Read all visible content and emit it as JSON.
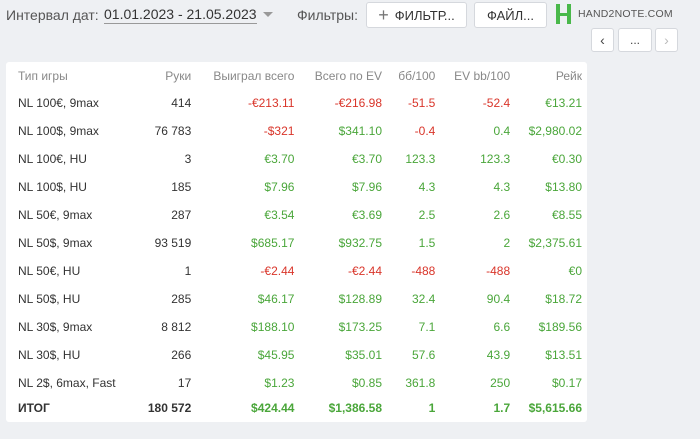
{
  "toolbar": {
    "interval_label": "Интервал дат:",
    "interval_value": "01.01.2023 - 21.05.2023",
    "filters_label": "Фильтры:",
    "filter_button": "ФИЛЬТР...",
    "file_button": "ФАЙЛ...",
    "logo_text": "HAND2NOTE.COM"
  },
  "pager": {
    "prev": "‹",
    "more": "...",
    "next": "›"
  },
  "table": {
    "columns": [
      "Тип игры",
      "Руки",
      "Выиграл всего",
      "Всего по EV",
      "бб/100",
      "EV bb/100",
      "Рейк"
    ],
    "rows": [
      [
        "NL 100€, 9max",
        "414",
        "-€213.11",
        "-€216.98",
        "-51.5",
        "-52.4",
        "€13.21"
      ],
      [
        "NL 100$, 9max",
        "76 783",
        "-$321",
        "$341.10",
        "-0.4",
        "0.4",
        "$2,980.02"
      ],
      [
        "NL 100€, HU",
        "3",
        "€3.70",
        "€3.70",
        "123.3",
        "123.3",
        "€0.30"
      ],
      [
        "NL 100$, HU",
        "185",
        "$7.96",
        "$7.96",
        "4.3",
        "4.3",
        "$13.80"
      ],
      [
        "NL 50€, 9max",
        "287",
        "€3.54",
        "€3.69",
        "2.5",
        "2.6",
        "€8.55"
      ],
      [
        "NL 50$, 9max",
        "93 519",
        "$685.17",
        "$932.75",
        "1.5",
        "2",
        "$2,375.61"
      ],
      [
        "NL 50€, HU",
        "1",
        "-€2.44",
        "-€2.44",
        "-488",
        "-488",
        "€0"
      ],
      [
        "NL 50$, HU",
        "285",
        "$46.17",
        "$128.89",
        "32.4",
        "90.4",
        "$18.72"
      ],
      [
        "NL 30$, 9max",
        "8 812",
        "$188.10",
        "$173.25",
        "7.1",
        "6.6",
        "$189.56"
      ],
      [
        "NL 30$, HU",
        "266",
        "$45.95",
        "$35.01",
        "57.6",
        "43.9",
        "$13.51"
      ],
      [
        "NL 2$, 6max, Fast",
        "17",
        "$1.23",
        "$0.85",
        "361.8",
        "250",
        "$0.17"
      ]
    ],
    "total": [
      "ИТОГ",
      "180 572",
      "$424.44",
      "$1,386.58",
      "1",
      "1.7",
      "$5,615.66"
    ]
  },
  "colors": {
    "positive": "#4aa63a",
    "negative": "#d9352a",
    "brand": "#49b84a"
  }
}
